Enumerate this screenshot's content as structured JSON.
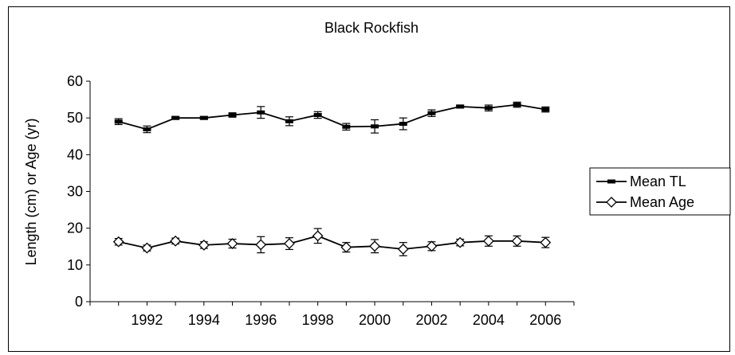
{
  "chart_data": {
    "type": "line",
    "title": "Black Rockfish",
    "xlabel": "",
    "ylabel": "Length (cm) or Age (yr)",
    "ylim": [
      0,
      60
    ],
    "yticks": [
      0,
      10,
      20,
      30,
      40,
      50,
      60
    ],
    "xlim": [
      1990,
      2007
    ],
    "xticks": [
      1992,
      1994,
      1996,
      1998,
      2000,
      2002,
      2004,
      2006
    ],
    "x": [
      1991,
      1992,
      1993,
      1994,
      1995,
      1996,
      1997,
      1998,
      1999,
      2000,
      2001,
      2002,
      2003,
      2004,
      2005,
      2006
    ],
    "series": [
      {
        "name": "Mean TL",
        "marker": "dash",
        "values": [
          49.0,
          46.9,
          50.0,
          50.0,
          50.8,
          51.5,
          49.1,
          50.8,
          47.6,
          47.7,
          48.4,
          51.3,
          53.1,
          52.7,
          53.6,
          52.3
        ],
        "err": [
          0.8,
          0.9,
          0.4,
          0.4,
          0.6,
          1.6,
          1.2,
          0.9,
          0.9,
          1.8,
          1.6,
          0.9,
          0.4,
          0.8,
          0.7,
          0.7
        ]
      },
      {
        "name": "Mean Age",
        "marker": "diamond",
        "values": [
          16.3,
          14.6,
          16.5,
          15.4,
          15.8,
          15.5,
          15.8,
          17.9,
          14.8,
          15.1,
          14.3,
          15.1,
          16.1,
          16.5,
          16.5,
          16.1
        ],
        "err": [
          0.9,
          0.8,
          0.8,
          0.9,
          1.2,
          2.2,
          1.6,
          2.0,
          1.3,
          1.8,
          1.8,
          1.2,
          0.9,
          1.4,
          1.4,
          1.4
        ]
      }
    ],
    "legend_position": "right",
    "grid": false,
    "line_color": "#000000"
  }
}
